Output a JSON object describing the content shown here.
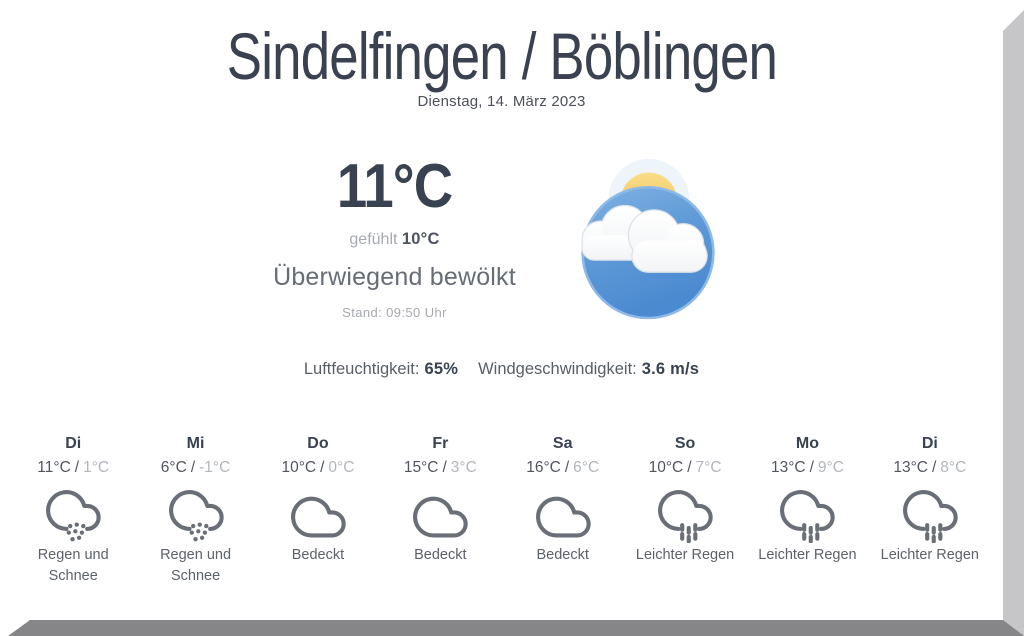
{
  "header": {
    "title": "Sindelfingen / Böblingen",
    "date": "Dienstag, 14. März 2023"
  },
  "current": {
    "temperature": "11°C",
    "feels_like_label": "gefühlt",
    "feels_like_value": "10°C",
    "condition": "Überwiegend bewölkt",
    "updated": "Stand: 09:50 Uhr",
    "icon": "mostly-cloudy-icon",
    "metrics": [
      {
        "label": "Luftfeuchtigkeit:",
        "value": "65%"
      },
      {
        "label": "Windgeschwindigkeit:",
        "value": "3.6 m/s"
      }
    ]
  },
  "forecast": {
    "separator": "/",
    "days": [
      {
        "day": "Di",
        "high": "11°C",
        "low": "1°C",
        "condition": "Regen und Schnee",
        "icon": "rain-snow"
      },
      {
        "day": "Mi",
        "high": "6°C",
        "low": "-1°C",
        "condition": "Regen und Schnee",
        "icon": "rain-snow"
      },
      {
        "day": "Do",
        "high": "10°C",
        "low": "0°C",
        "condition": "Bedeckt",
        "icon": "overcast"
      },
      {
        "day": "Fr",
        "high": "15°C",
        "low": "3°C",
        "condition": "Bedeckt",
        "icon": "overcast"
      },
      {
        "day": "Sa",
        "high": "16°C",
        "low": "6°C",
        "condition": "Bedeckt",
        "icon": "overcast"
      },
      {
        "day": "So",
        "high": "10°C",
        "low": "7°C",
        "condition": "Leichter Regen",
        "icon": "light-rain"
      },
      {
        "day": "Mo",
        "high": "13°C",
        "low": "9°C",
        "condition": "Leichter Regen",
        "icon": "light-rain"
      },
      {
        "day": "Di",
        "high": "13°C",
        "low": "8°C",
        "condition": "Leichter Regen",
        "icon": "light-rain"
      }
    ]
  },
  "colors": {
    "heading_text": "#3a4251",
    "muted_text": "#a6aab2",
    "forecast_icon_stroke": "#696e77",
    "sun_yellow": "#f3c35e",
    "globe_blue": "#5693d4",
    "frame_right": "#c6c6c9",
    "frame_bottom": "#868689"
  }
}
